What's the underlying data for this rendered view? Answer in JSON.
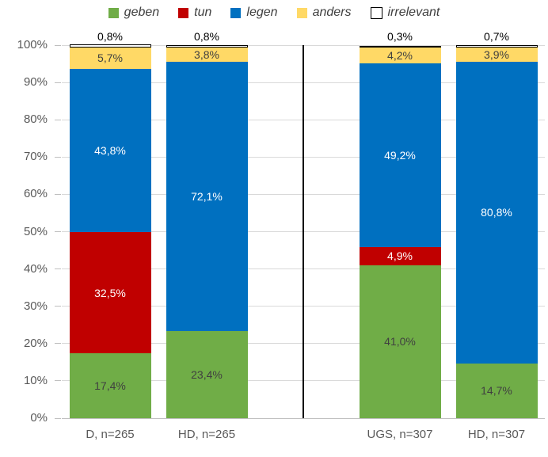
{
  "chart_data": {
    "type": "bar",
    "subtype": "stacked-percent",
    "title": "",
    "legend": {
      "position": "top",
      "items": [
        "geben",
        "tun",
        "legen",
        "anders",
        "irrelevant"
      ]
    },
    "y_axis": {
      "min": 0,
      "max": 100,
      "tick_step": 10,
      "grid": true,
      "tick_labels": [
        "100%",
        "90%",
        "80%",
        "70%",
        "60%",
        "50%",
        "40%",
        "30%",
        "20%",
        "10%",
        "0%"
      ]
    },
    "series": [
      {
        "name": "geben",
        "color": "#70AD47",
        "label_color": "#404040",
        "label_placement": "inside"
      },
      {
        "name": "tun",
        "color": "#C00000",
        "label_color": "#FFFFFF",
        "label_placement": "inside"
      },
      {
        "name": "legen",
        "color": "#0070C0",
        "label_color": "#FFFFFF",
        "label_placement": "inside"
      },
      {
        "name": "anders",
        "color": "#FFD966",
        "label_color": "#404040",
        "label_placement": "inside"
      },
      {
        "name": "irrelevant",
        "color": "#FFFFFF",
        "border_color": "#000000",
        "label_color": "#000000",
        "label_placement": "above"
      }
    ],
    "groups": [
      {
        "bars": [
          {
            "category": "D, n=265",
            "values": {
              "geben": 17.4,
              "tun": 32.5,
              "legen": 43.8,
              "anders": 5.7,
              "irrelevant": 0.8
            },
            "labels": {
              "geben": "17,4%",
              "tun": "32,5%",
              "legen": "43,8%",
              "anders": "5,7%",
              "irrelevant": "0,8%"
            }
          },
          {
            "category": "HD, n=265",
            "values": {
              "geben": 23.4,
              "tun": 0,
              "legen": 72.1,
              "anders": 3.8,
              "irrelevant": 0.8
            },
            "labels": {
              "geben": "23,4%",
              "legen": "72,1%",
              "anders": "3,8%",
              "irrelevant": "0,8%"
            }
          }
        ]
      },
      {
        "bars": [
          {
            "category": "UGS, n=307",
            "values": {
              "geben": 41.0,
              "tun": 4.9,
              "legen": 49.2,
              "anders": 4.2,
              "irrelevant": 0.3
            },
            "labels": {
              "geben": "41,0%",
              "tun": "4,9%",
              "legen": "49,2%",
              "anders": "4,2%",
              "irrelevant": "0,3%"
            }
          },
          {
            "category": "HD, n=307",
            "values": {
              "geben": 14.7,
              "tun": 0,
              "legen": 80.8,
              "anders": 3.9,
              "irrelevant": 0.7
            },
            "labels": {
              "geben": "14,7%",
              "legen": "80,8%",
              "anders": "3,9%",
              "irrelevant": "0,7%"
            }
          }
        ]
      }
    ],
    "divider_between_groups": true
  },
  "colors": {
    "background": "#FFFFFF",
    "gridline": "#D9D9D9",
    "axis_line": "#BFBFBF",
    "tick_mark": "#BFBFBF",
    "axis_text": "#595959",
    "divider": "#000000"
  }
}
